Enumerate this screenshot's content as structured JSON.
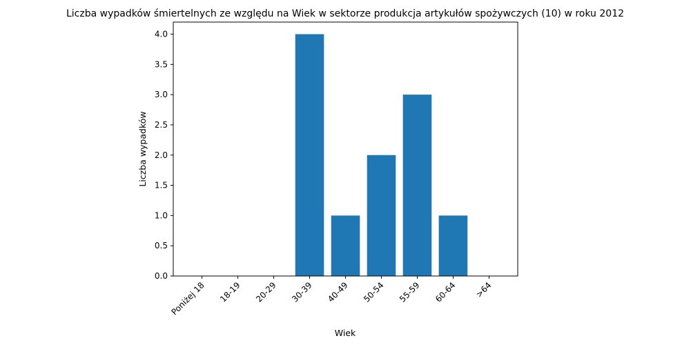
{
  "chart_data": {
    "type": "bar",
    "title": "Liczba wypadków śmiertelnych ze względu na Wiek w sektorze produkcja artykułów spożywczych  (10)   w roku 2012",
    "xlabel": "Wiek",
    "ylabel": "Liczba wypadków",
    "categories": [
      "Poniżej 18",
      "18-19",
      "20-29",
      "30-39",
      "40-49",
      "50-54",
      "55-59",
      "60-64",
      ">64"
    ],
    "values": [
      0,
      0,
      0,
      4,
      1,
      2,
      3,
      1,
      0
    ],
    "ylim": [
      0,
      4.2
    ],
    "yticks": [
      0.0,
      0.5,
      1.0,
      1.5,
      2.0,
      2.5,
      3.0,
      3.5,
      4.0
    ],
    "ytick_labels": [
      "0.0",
      "0.5",
      "1.0",
      "1.5",
      "2.0",
      "2.5",
      "3.0",
      "3.5",
      "4.0"
    ],
    "bar_color": "#1f77b4",
    "grid": false,
    "legend": "none"
  }
}
